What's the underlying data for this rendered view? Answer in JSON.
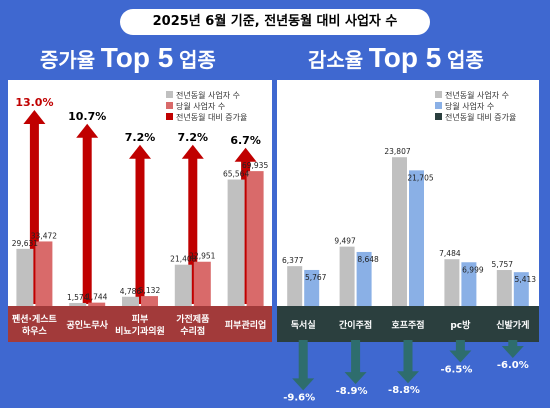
{
  "header": {
    "title": "2025년 6월 기준, 전년동월 대비 사업자 수"
  },
  "left": {
    "title_kr1": "증가율",
    "title_en": "Top 5",
    "title_kr2": "업종"
  },
  "right": {
    "title_kr1": "감소율",
    "title_en": "Top 5",
    "title_kr2": "업종"
  },
  "colors": {
    "background": "#3f68d0",
    "prev_year_bar": "#c0c0c0",
    "left_current_bar": "#d96a6a",
    "left_arrow": "#c00000",
    "left_band": "#a23a3a",
    "right_current_bar": "#8ab0e6",
    "right_arrow": "#2e6d6d",
    "right_band": "#2b3f3e"
  },
  "chart_data": [
    {
      "type": "bar",
      "title": "증가율 Top 5 업종",
      "categories": [
        "펜션·게스트\n하우스",
        "공인노무사",
        "피부\n비뇨기과의원",
        "가전제품\n수리점",
        "피부관리업"
      ],
      "series": [
        {
          "name": "전년동월 사업자 수",
          "values": [
            29631,
            1574,
            4786,
            21408,
            65564
          ],
          "labels": [
            "29,631",
            "1,574",
            "4,786",
            "21,408",
            "65,564"
          ]
        },
        {
          "name": "당월 사업자 수",
          "values": [
            33472,
            1744,
            5132,
            22951,
            69935
          ],
          "labels": [
            "33,472",
            "1,744",
            "5,132",
            "22,951",
            "69,935"
          ]
        },
        {
          "name": "전년동월 대비 증가율",
          "values": [
            13.0,
            10.7,
            7.2,
            7.2,
            6.7
          ],
          "labels": [
            "13.0%",
            "10.7%",
            "7.2%",
            "7.2%",
            "6.7%"
          ]
        }
      ],
      "legend": "top-right"
    },
    {
      "type": "bar",
      "title": "감소율 Top 5 업종",
      "categories": [
        "독서실",
        "간이주점",
        "호프주점",
        "pc방",
        "신발가게"
      ],
      "series": [
        {
          "name": "전년동월 사업자 수",
          "values": [
            6377,
            9497,
            23807,
            7484,
            5757
          ],
          "labels": [
            "6,377",
            "9,497",
            "23,807",
            "7,484",
            "5,757"
          ]
        },
        {
          "name": "당월 사업자 수",
          "values": [
            5767,
            8648,
            21705,
            6999,
            5413
          ],
          "labels": [
            "5,767",
            "8,648",
            "21,705",
            "6,999",
            "5,413"
          ]
        },
        {
          "name": "전년동월 대비 증가율",
          "values": [
            -9.6,
            -8.9,
            -8.8,
            -6.5,
            -6.0
          ],
          "labels": [
            "-9.6%",
            "-8.9%",
            "-8.8%",
            "-6.5%",
            "-6.0%"
          ]
        }
      ],
      "legend": "top-right"
    }
  ]
}
